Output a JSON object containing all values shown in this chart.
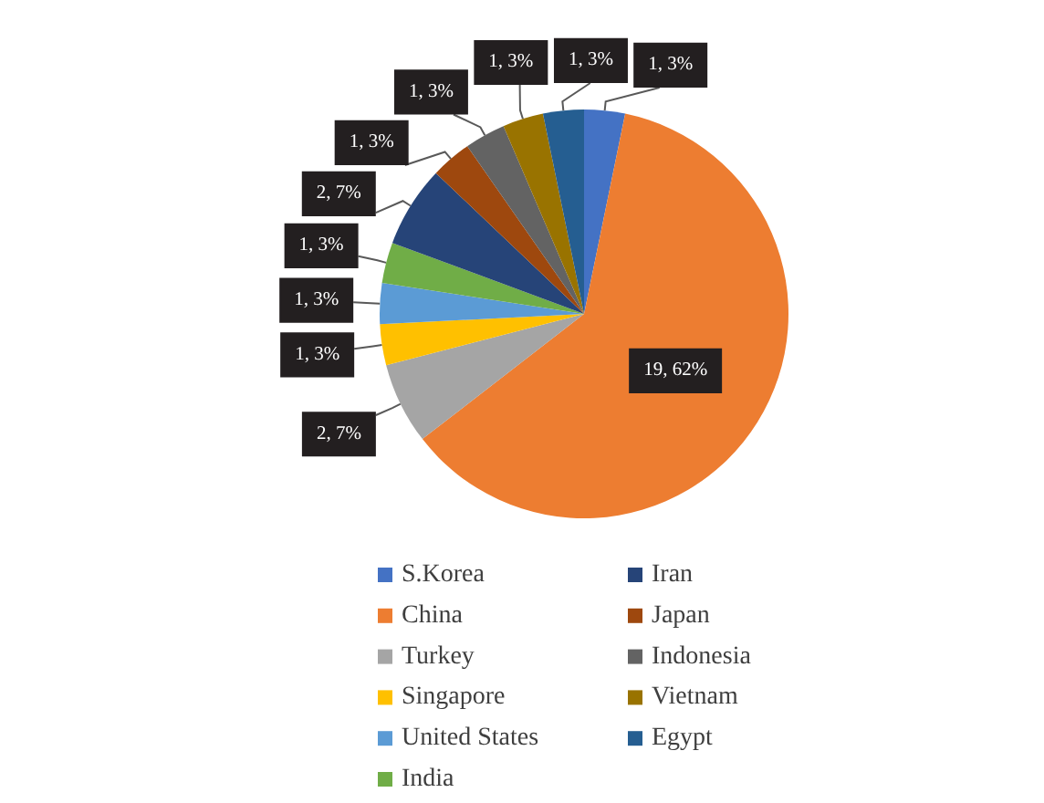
{
  "chart_data": {
    "type": "pie",
    "categories": [
      "S.Korea",
      "China",
      "Turkey",
      "Singapore",
      "United States",
      "India",
      "Iran",
      "Japan",
      "Indonesia",
      "Vietnam",
      "Egypt"
    ],
    "values": [
      1,
      19,
      2,
      1,
      1,
      1,
      2,
      1,
      1,
      1,
      1
    ],
    "colors": [
      "#4472c4",
      "#ed7d31",
      "#a5a5a5",
      "#ffc000",
      "#5b9bd5",
      "#70ad47",
      "#264478",
      "#9e480e",
      "#636363",
      "#997300",
      "#255e91"
    ],
    "value_labels": [
      "1, 3%",
      "19, 62%",
      "2, 7%",
      "1, 3%",
      "1, 3%",
      "1, 3%",
      "2, 7%",
      "1, 3%",
      "1, 3%",
      "1, 3%",
      "1, 3%"
    ],
    "legend": "bottom"
  }
}
